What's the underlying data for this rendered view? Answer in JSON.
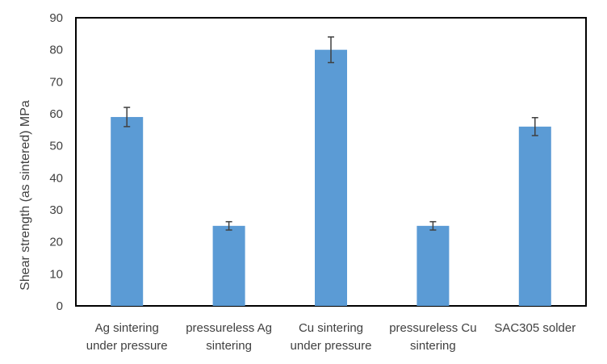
{
  "chart_data": {
    "type": "bar",
    "title": "",
    "xlabel": "",
    "ylabel": "Shear strength (as sintered) MPa",
    "ylim": [
      0,
      90
    ],
    "yticks": [
      0,
      10,
      20,
      30,
      40,
      50,
      60,
      70,
      80,
      90
    ],
    "grid": false,
    "legend": "none",
    "bar_color": "#5b9bd5",
    "categories": [
      [
        "Ag sintering",
        "under pressure"
      ],
      [
        "pressureless Ag",
        "sintering"
      ],
      [
        "Cu sintering",
        "under pressure"
      ],
      [
        "pressureless Cu",
        "sintering"
      ],
      [
        "SAC305 solder"
      ]
    ],
    "values": [
      59,
      25,
      80,
      25,
      56
    ],
    "error": [
      3,
      1.3,
      4,
      1.3,
      2.8
    ]
  }
}
